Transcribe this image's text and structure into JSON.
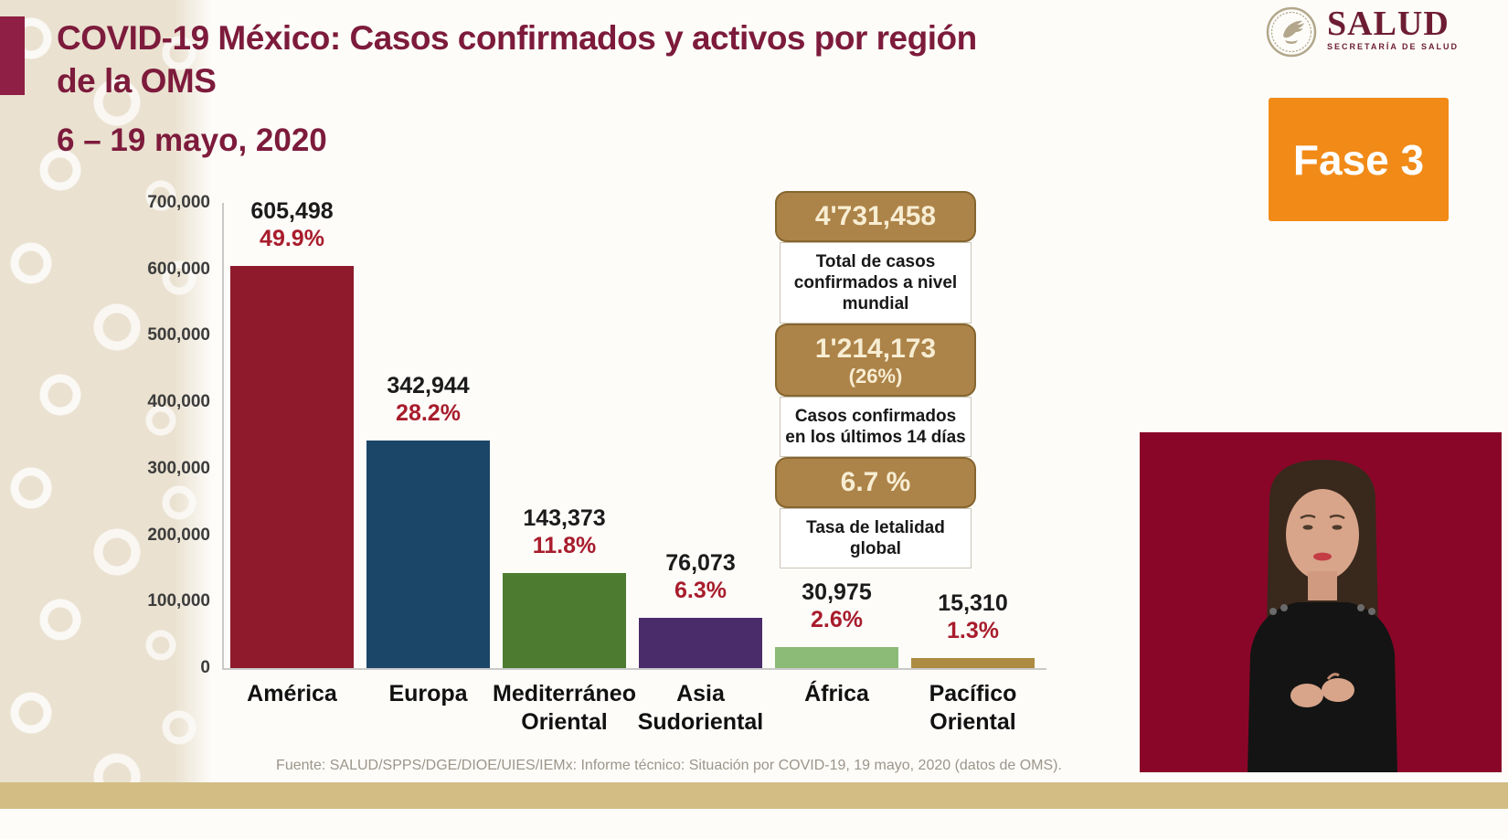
{
  "slide": {
    "title_line1": "COVID-19 México: Casos confirmados y activos por región",
    "title_line2": "de la OMS",
    "date_range": "6 – 19 mayo, 2020",
    "phase_badge": "Fase 3",
    "logo_title": "SALUD",
    "logo_subtitle": "SECRETARÍA DE SALUD",
    "footer_source": "Fuente: SALUD/SPPS/DGE/DIOE/UIES/IEMx: Informe técnico: Situación por COVID-19, 19 mayo, 2020 (datos de OMS)."
  },
  "chart_data": {
    "type": "bar",
    "title": "COVID-19 México: Casos confirmados y activos por región de la OMS",
    "categories": [
      "América",
      "Europa",
      "Mediterráneo Oriental",
      "Asia Sudoriental",
      "África",
      "Pacífico Oriental"
    ],
    "category_lines": [
      [
        "América"
      ],
      [
        "Europa"
      ],
      [
        "Mediterráneo",
        "Oriental"
      ],
      [
        "Asia",
        "Sudoriental"
      ],
      [
        "África"
      ],
      [
        "Pacífico",
        "Oriental"
      ]
    ],
    "values": [
      605498,
      342944,
      143373,
      76073,
      30975,
      15310
    ],
    "value_labels": [
      "605,498",
      "342,944",
      "143,373",
      "76,073",
      "30,975",
      "15,310"
    ],
    "pct_labels": [
      "49.9%",
      "28.2%",
      "11.8%",
      "6.3%",
      "2.6%",
      "1.3%"
    ],
    "bar_colors": [
      "#8e1a2c",
      "#1c4668",
      "#4d7c31",
      "#4b2c6b",
      "#8cba77",
      "#ad8c42"
    ],
    "y_ticks": [
      "700,000",
      "600,000",
      "500,000",
      "400,000",
      "300,000",
      "200,000",
      "100,000",
      "0"
    ],
    "ylim": [
      0,
      700000
    ],
    "xlabel": "",
    "ylabel": "",
    "grid": false,
    "legend": false
  },
  "info_panel": {
    "items": [
      {
        "value": "4'731,458",
        "subvalue": "",
        "label": "Total de casos confirmados a nivel mundial"
      },
      {
        "value": "1'214,173",
        "subvalue": "(26%)",
        "label": "Casos confirmados en los últimos 14 días"
      },
      {
        "value": "6.7 %",
        "subvalue": "",
        "label": "Tasa de letalidad global"
      }
    ]
  },
  "colors": {
    "maroon": "#7d1b3c",
    "pct_red": "#a81c2c",
    "phase_orange": "#f18a17",
    "info_tan": "#ac8349",
    "info_tan_border": "#85662f",
    "gold_band": "#d3bd85",
    "video_maroon": "#8a0628",
    "beige_strip": "#eae1d0"
  }
}
